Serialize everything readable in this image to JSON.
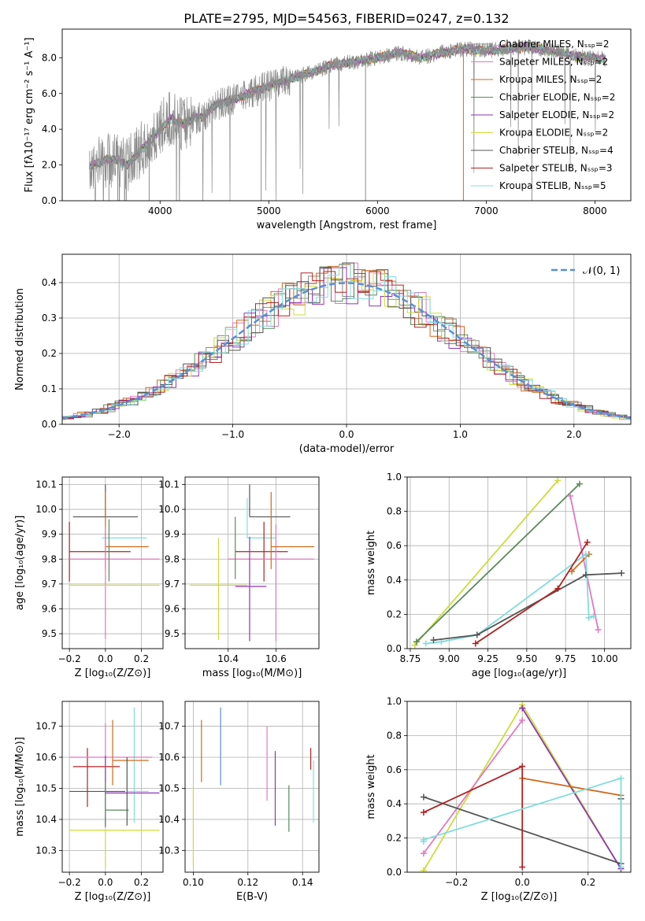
{
  "figure": {
    "title": "PLATE=2795, MJD=54563, FIBERID=0247, z=0.132"
  },
  "colors": {
    "chabrier_miles": "#8c8c8c",
    "salpeter_miles": "#e377c2",
    "kroupa_miles": "#d2691e",
    "chabrier_elodie": "#5a8a5a",
    "salpeter_elodie": "#8e35b7",
    "kroupa_elodie": "#cddc39",
    "chabrier_stelib": "#555555",
    "salpeter_stelib": "#b22222",
    "kroupa_stelib": "#80dcdc",
    "normal_curve": "#5b8fd6"
  },
  "chart_data": [
    {
      "id": "spectrum",
      "type": "line",
      "xlabel": "wavelength [Angstrom, rest frame]",
      "ylabel": "Flux [fλ10⁻¹⁷ erg cm⁻² s⁻¹ A⁻¹]",
      "xlim": [
        3100,
        8330
      ],
      "ylim": [
        0,
        9.6
      ],
      "xticks": [
        4000,
        5000,
        6000,
        7000,
        8000
      ],
      "yticks": [
        0,
        2,
        4,
        6,
        8
      ],
      "grid": false,
      "legend_position": "top-right",
      "continuum_points": [
        [
          3350,
          1.9
        ],
        [
          3500,
          2.3
        ],
        [
          3600,
          2.3
        ],
        [
          3700,
          2.0
        ],
        [
          3800,
          2.7
        ],
        [
          3900,
          3.3
        ],
        [
          4000,
          4.0
        ],
        [
          4100,
          4.6
        ],
        [
          4200,
          4.3
        ],
        [
          4300,
          4.6
        ],
        [
          4400,
          4.7
        ],
        [
          4500,
          5.3
        ],
        [
          4700,
          5.7
        ],
        [
          4900,
          6.2
        ],
        [
          5000,
          6.4
        ],
        [
          5200,
          6.8
        ],
        [
          5400,
          7.2
        ],
        [
          5600,
          7.6
        ],
        [
          5800,
          7.8
        ],
        [
          6000,
          8.0
        ],
        [
          6200,
          8.3
        ],
        [
          6400,
          8.0
        ],
        [
          6600,
          8.3
        ],
        [
          6800,
          8.5
        ],
        [
          7000,
          8.4
        ],
        [
          7200,
          8.5
        ],
        [
          7400,
          8.6
        ],
        [
          7600,
          8.4
        ],
        [
          7800,
          8.1
        ],
        [
          8000,
          8.0
        ],
        [
          8100,
          7.9
        ]
      ],
      "series": [
        {
          "name": "Chabrier MILES, Nₛₛₚ=2",
          "color_key": "chabrier_miles"
        },
        {
          "name": "Salpeter MILES, Nₛₛₚ=2",
          "color_key": "salpeter_miles"
        },
        {
          "name": "Kroupa MILES, Nₛₛₚ=2",
          "color_key": "kroupa_miles"
        },
        {
          "name": "Chabrier ELODIE, Nₛₛₚ=2",
          "color_key": "chabrier_elodie"
        },
        {
          "name": "Salpeter ELODIE, Nₛₛₚ=2",
          "color_key": "salpeter_elodie"
        },
        {
          "name": "Kroupa ELODIE, Nₛₛₚ=2",
          "color_key": "kroupa_elodie"
        },
        {
          "name": "Chabrier STELIB, Nₛₛₚ=4",
          "color_key": "chabrier_stelib"
        },
        {
          "name": "Salpeter STELIB, Nₛₛₚ=3",
          "color_key": "salpeter_stelib"
        },
        {
          "name": "Kroupa STELIB, Nₛₛₚ=5",
          "color_key": "kroupa_stelib"
        }
      ]
    },
    {
      "id": "residual_hist",
      "type": "step-histogram",
      "xlabel": "(data-model)/error",
      "ylabel": "Normed distribution",
      "xlim": [
        -2.5,
        2.5
      ],
      "ylim": [
        0,
        0.48
      ],
      "xticks": [
        -2,
        -1,
        0,
        1,
        2
      ],
      "yticks": [
        0.0,
        0.1,
        0.2,
        0.3,
        0.4
      ],
      "grid": true,
      "legend_position": "top-right",
      "legend_label": "𝒩(0, 1)",
      "normal_curve": {
        "mean": 0,
        "sigma": 1
      }
    },
    {
      "id": "age_vs_Z",
      "type": "errorbar",
      "xlabel": "Z [log₁₀(Z/Z⊙)]",
      "ylabel": "age  [log₁₀(age/yr)]",
      "xlim": [
        -0.24,
        0.32
      ],
      "ylim": [
        9.44,
        10.13
      ],
      "xticks": [
        -0.2,
        0.0,
        0.2
      ],
      "yticks": [
        9.5,
        9.6,
        9.7,
        9.8,
        9.9,
        10.0,
        10.1
      ],
      "grid": true,
      "points": [
        {
          "color_key": "chabrier_stelib",
          "x": 0.0,
          "xerr": [
            0.18,
            0.18
          ],
          "y": 9.97,
          "yerr": [
            0.0,
            0.13
          ]
        },
        {
          "color_key": "kroupa_stelib",
          "x": 0.0,
          "xerr": [
            0.02,
            0.23
          ],
          "y": 9.885,
          "yerr": [
            0.0,
            0.0
          ]
        },
        {
          "color_key": "kroupa_miles",
          "x": 0.0,
          "xerr": [
            0.0,
            0.24
          ],
          "y": 9.85,
          "yerr": [
            0.09,
            0.22
          ]
        },
        {
          "color_key": "salpeter_stelib",
          "x": -0.2,
          "xerr": [
            0.0,
            0.34
          ],
          "y": 9.83,
          "yerr": [
            0.12,
            0.12
          ]
        },
        {
          "color_key": "salpeter_miles",
          "x": 0.0,
          "xerr": [
            0.2,
            0.3
          ],
          "y": 9.8,
          "yerr": [
            0.32,
            0.13
          ]
        },
        {
          "color_key": "kroupa_elodie",
          "x": 0.0,
          "xerr": [
            0.2,
            0.3
          ],
          "y": 9.695,
          "yerr": [
            0.0,
            0.0
          ]
        },
        {
          "color_key": "chabrier_elodie",
          "x": 0.02,
          "xerr": [
            0.0,
            0.0
          ],
          "y": 9.81,
          "yerr": [
            0.1,
            0.15
          ]
        }
      ]
    },
    {
      "id": "age_vs_mass",
      "type": "errorbar",
      "xlabel": "mass [log₁₀(M/M⊙)]",
      "ylabel": "",
      "xlim": [
        10.22,
        10.78
      ],
      "ylim": [
        9.44,
        10.13
      ],
      "xticks": [
        10.4,
        10.6
      ],
      "yticks": [
        9.5,
        9.6,
        9.7,
        9.8,
        9.9,
        10.0,
        10.1
      ],
      "grid": true,
      "points": [
        {
          "color_key": "chabrier_stelib",
          "x": 10.49,
          "xerr": [
            0.0,
            0.17
          ],
          "y": 9.97,
          "yerr": [
            0.0,
            0.13
          ]
        },
        {
          "color_key": "kroupa_stelib",
          "x": 10.48,
          "xerr": [
            0.0,
            0.12
          ],
          "y": 9.885,
          "yerr": [
            0.0,
            0.16
          ]
        },
        {
          "color_key": "kroupa_elodie",
          "x": 10.36,
          "xerr": [
            0.12,
            0.12
          ],
          "y": 9.695,
          "yerr": [
            0.22,
            0.19
          ]
        },
        {
          "color_key": "salpeter_stelib",
          "x": 10.55,
          "xerr": [
            0.12,
            0.1
          ],
          "y": 9.83,
          "yerr": [
            0.12,
            0.12
          ]
        },
        {
          "color_key": "salpeter_miles",
          "x": 10.6,
          "xerr": [
            0.2,
            0.16
          ],
          "y": 9.8,
          "yerr": [
            0.33,
            0.14
          ]
        },
        {
          "color_key": "kroupa_miles",
          "x": 10.58,
          "xerr": [
            0.0,
            0.18
          ],
          "y": 9.85,
          "yerr": [
            0.09,
            0.22
          ]
        },
        {
          "color_key": "salpeter_elodie",
          "x": 10.49,
          "xerr": [
            0.06,
            0.07
          ],
          "y": 9.69,
          "yerr": [
            0.22,
            0.2
          ]
        },
        {
          "color_key": "chabrier_elodie",
          "x": 10.43,
          "xerr": [
            0.0,
            0.0
          ],
          "y": 9.8,
          "yerr": [
            0.08,
            0.17
          ]
        }
      ]
    },
    {
      "id": "weight_vs_age",
      "type": "line",
      "xlabel": "age  [log₁₀(age/yr)]",
      "ylabel": "mass weight",
      "xlim": [
        8.73,
        10.17
      ],
      "ylim": [
        0,
        1.0
      ],
      "xticks": [
        8.75,
        9.0,
        9.25,
        9.5,
        9.75,
        10.0
      ],
      "xtick_labels": [
        "8.75",
        "9.00",
        "9.25",
        "9.50",
        "9.75",
        "10.00"
      ],
      "yticks": [
        0.0,
        0.2,
        0.4,
        0.6,
        0.8,
        1.0
      ],
      "grid": true,
      "series": [
        {
          "color_key": "kroupa_elodie",
          "x": [
            8.78,
            9.7
          ],
          "y": [
            0.02,
            0.98
          ]
        },
        {
          "color_key": "chabrier_elodie",
          "x": [
            8.79,
            9.84
          ],
          "y": [
            0.04,
            0.96
          ]
        },
        {
          "color_key": "salpeter_miles",
          "x": [
            9.78,
            9.96
          ],
          "y": [
            0.89,
            0.11
          ]
        },
        {
          "color_key": "kroupa_miles",
          "x": [
            9.79,
            9.9
          ],
          "y": [
            0.45,
            0.55
          ]
        },
        {
          "color_key": "kroupa_stelib",
          "x": [
            8.85,
            8.95,
            9.18,
            9.88,
            9.9,
            9.93
          ],
          "y": [
            0.03,
            0.04,
            0.08,
            0.55,
            0.18,
            0.19
          ]
        },
        {
          "color_key": "chabrier_stelib",
          "x": [
            8.9,
            9.18,
            9.88,
            10.11
          ],
          "y": [
            0.05,
            0.08,
            0.43,
            0.44
          ]
        },
        {
          "color_key": "salpeter_stelib",
          "x": [
            9.17,
            9.7,
            9.89
          ],
          "y": [
            0.03,
            0.35,
            0.62
          ]
        }
      ]
    },
    {
      "id": "mass_vs_Z",
      "type": "errorbar",
      "xlabel": "Z [log₁₀(Z/Z⊙)]",
      "ylabel": "mass [log₁₀(M/M⊙)]",
      "xlim": [
        -0.24,
        0.32
      ],
      "ylim": [
        10.23,
        10.78
      ],
      "xticks": [
        -0.2,
        0.0,
        0.2
      ],
      "yticks": [
        10.3,
        10.4,
        10.5,
        10.6,
        10.7
      ],
      "grid": true,
      "points": [
        {
          "color_key": "salpeter_stelib",
          "x": -0.1,
          "xerr": [
            0.08,
            0.18
          ],
          "y": 10.57,
          "yerr": [
            0.13,
            0.06
          ]
        },
        {
          "color_key": "chabrier_stelib",
          "x": -0.05,
          "xerr": [
            0.15,
            0.16
          ],
          "y": 10.49,
          "yerr": [
            0.0,
            0.0
          ]
        },
        {
          "color_key": "kroupa_stelib",
          "x": 0.16,
          "xerr": [
            0.04,
            0.08
          ],
          "y": 10.49,
          "yerr": [
            0.1,
            0.27
          ]
        },
        {
          "color_key": "salpeter_miles",
          "x": 0.0,
          "xerr": [
            0.2,
            0.26
          ],
          "y": 10.6,
          "yerr": [
            0.12,
            0.11
          ]
        },
        {
          "color_key": "kroupa_miles",
          "x": 0.04,
          "xerr": [
            0.0,
            0.2
          ],
          "y": 10.59,
          "yerr": [
            0.08,
            0.13
          ]
        },
        {
          "color_key": "kroupa_elodie",
          "x": 0.0,
          "xerr": [
            0.2,
            0.3
          ],
          "y": 10.365,
          "yerr": [
            0.12,
            0.0
          ]
        },
        {
          "color_key": "salpeter_elodie",
          "x": 0.0,
          "xerr": [
            0.0,
            0.3
          ],
          "y": 10.485,
          "yerr": [
            0.11,
            0.12
          ]
        },
        {
          "color_key": "chabrier_elodie",
          "x": 0.0,
          "xerr": [
            0.0,
            0.13
          ],
          "y": 10.43,
          "yerr": [
            0.05,
            0.09
          ]
        },
        {
          "color_key": "chabrier_stelib",
          "x": 0.12,
          "xerr": [
            0.0,
            0.0
          ],
          "y": 10.48,
          "yerr": [
            0.1,
            0.12
          ]
        }
      ]
    },
    {
      "id": "mass_vs_ebv",
      "type": "errorbar",
      "xlabel": "E(B-V)",
      "ylabel": "",
      "xlim": [
        0.097,
        0.146
      ],
      "ylim": [
        10.23,
        10.78
      ],
      "xticks": [
        0.1,
        0.12,
        0.14
      ],
      "xtick_labels": [
        "0.10",
        "0.12",
        "0.14"
      ],
      "yticks": [
        10.3,
        10.4,
        10.5,
        10.6,
        10.7
      ],
      "grid": true,
      "points": [
        {
          "color_key": "kroupa_elodie",
          "x": 0.1,
          "y": 10.38,
          "yerr": [
            0.13,
            0.13
          ]
        },
        {
          "color_key": "kroupa_miles",
          "x": 0.103,
          "y": 10.62,
          "yerr": [
            0.1,
            0.1
          ]
        },
        {
          "color_key": "normal_curve",
          "x": 0.11,
          "y": 10.63,
          "yerr": [
            0.12,
            0.13
          ]
        },
        {
          "color_key": "salpeter_miles",
          "x": 0.127,
          "y": 10.58,
          "yerr": [
            0.12,
            0.12
          ]
        },
        {
          "color_key": "salpeter_elodie",
          "x": 0.13,
          "y": 10.49,
          "yerr": [
            0.11,
            0.13
          ]
        },
        {
          "color_key": "chabrier_elodie",
          "x": 0.135,
          "y": 10.43,
          "yerr": [
            0.07,
            0.08
          ]
        },
        {
          "color_key": "salpeter_stelib",
          "x": 0.143,
          "y": 10.59,
          "yerr": [
            0.03,
            0.04
          ]
        },
        {
          "color_key": "kroupa_stelib",
          "x": 0.144,
          "y": 10.49,
          "yerr": [
            0.1,
            0.1
          ]
        }
      ]
    },
    {
      "id": "weight_vs_Z",
      "type": "line",
      "xlabel": "Z [log₁₀(Z/Z⊙)]",
      "ylabel": "mass weight",
      "xlim": [
        -0.35,
        0.33
      ],
      "ylim": [
        0,
        1.0
      ],
      "xticks": [
        -0.2,
        0.0,
        0.2
      ],
      "yticks": [
        0.0,
        0.2,
        0.4,
        0.6,
        0.8,
        1.0
      ],
      "grid": true,
      "series": [
        {
          "color_key": "kroupa_elodie",
          "x": [
            -0.3,
            0.0,
            0.3
          ],
          "y": [
            0.01,
            0.98,
            0.02
          ]
        },
        {
          "color_key": "salpeter_miles",
          "x": [
            -0.3,
            0.0
          ],
          "y": [
            0.11,
            0.89
          ]
        },
        {
          "color_key": "salpeter_elodie",
          "x": [
            0.0,
            0.3
          ],
          "y": [
            0.96,
            0.02
          ]
        },
        {
          "color_key": "kroupa_miles",
          "x": [
            0.0,
            0.3
          ],
          "y": [
            0.55,
            0.45
          ]
        },
        {
          "color_key": "chabrier_stelib",
          "x": [
            -0.3,
            0.3,
            0.3
          ],
          "y": [
            0.44,
            0.05,
            0.43
          ]
        },
        {
          "color_key": "salpeter_stelib",
          "x": [
            -0.3,
            0.0,
            0.0
          ],
          "y": [
            0.35,
            0.62,
            0.03
          ]
        },
        {
          "color_key": "kroupa_stelib",
          "x": [
            -0.3,
            -0.3,
            0.3,
            0.3
          ],
          "y": [
            0.18,
            0.19,
            0.55,
            0.03
          ]
        }
      ]
    }
  ]
}
